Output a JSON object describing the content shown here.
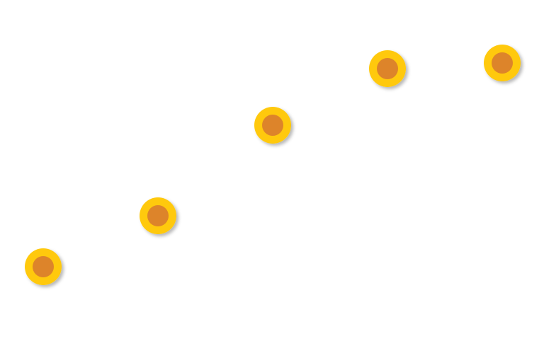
{
  "chart_data": {
    "type": "scatter",
    "x": [
      1,
      2,
      3,
      4,
      5
    ],
    "y": [
      1.0,
      1.9,
      3.5,
      4.5,
      4.6
    ],
    "xlim": [
      1,
      5
    ],
    "ylim": [
      1.0,
      4.6
    ],
    "grid": false,
    "axes_visible": false,
    "colors": {
      "marker_outer": "#FFC90E",
      "marker_inner": "#DD842A",
      "marker_shadow": "#000000"
    }
  }
}
